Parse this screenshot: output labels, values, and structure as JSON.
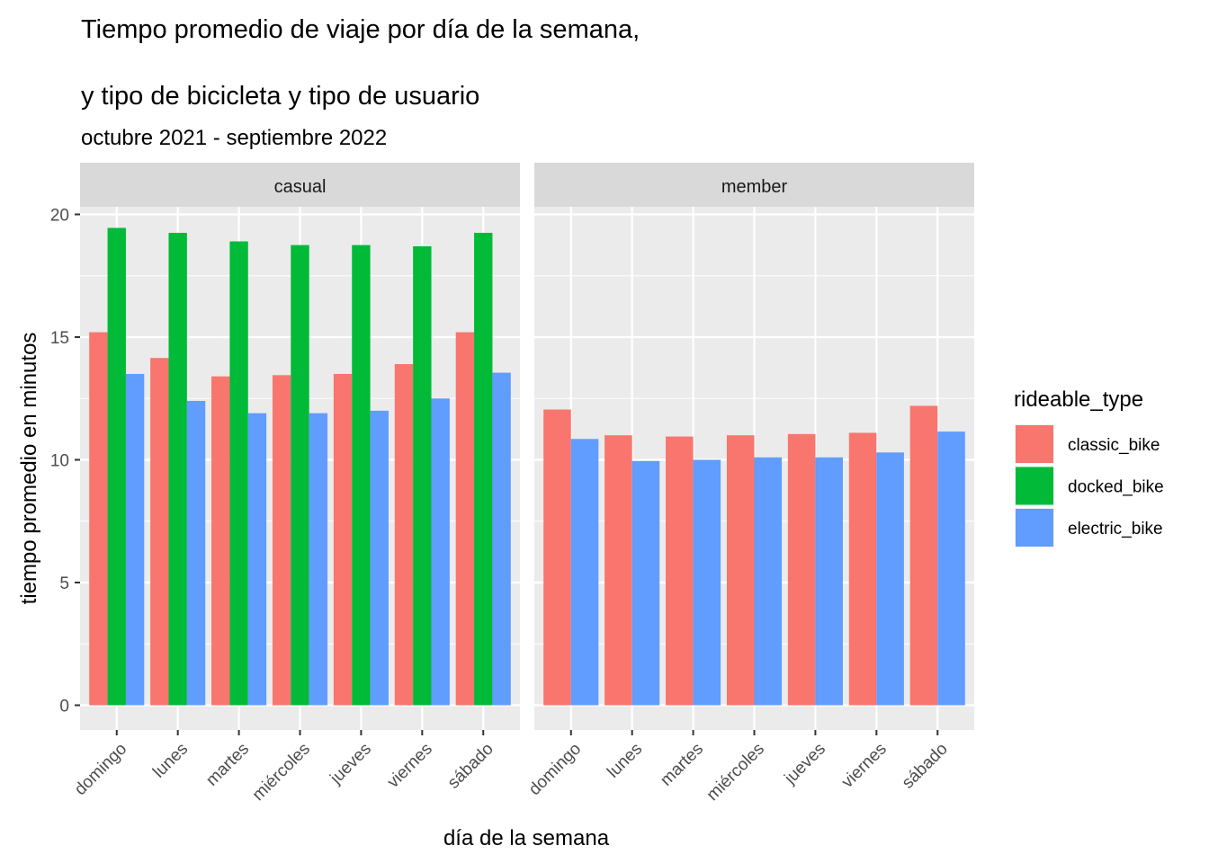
{
  "chart_data": {
    "type": "bar",
    "title_line1": "Tiempo promedio de viaje por día de la semana,",
    "title_line2": "y tipo de bicicleta y tipo de usuario",
    "subtitle": "octubre 2021 - septiembre 2022",
    "xlabel": "día de la semana",
    "ylabel": "tiempo promedio en minutos",
    "ylim": [
      0,
      20
    ],
    "yticks": [
      "0",
      "5",
      "10",
      "15",
      "20"
    ],
    "grid": true,
    "legend_position": "right",
    "legend_title": "rideable_type",
    "categories": [
      "domingo",
      "lunes",
      "martes",
      "miércoles",
      "jueves",
      "viernes",
      "sábado"
    ],
    "series_colors": {
      "classic_bike": "#F8766D",
      "docked_bike": "#00BA38",
      "electric_bike": "#619CFF"
    },
    "legend_items": [
      "classic_bike",
      "docked_bike",
      "electric_bike"
    ],
    "facets": [
      {
        "label": "casual",
        "series": [
          {
            "name": "classic_bike",
            "values": [
              15.2,
              14.15,
              13.4,
              13.45,
              13.5,
              13.9,
              15.2
            ]
          },
          {
            "name": "docked_bike",
            "values": [
              19.45,
              19.25,
              18.9,
              18.75,
              18.75,
              18.7,
              19.25
            ]
          },
          {
            "name": "electric_bike",
            "values": [
              13.5,
              12.4,
              11.9,
              11.9,
              12.0,
              12.5,
              13.55
            ]
          }
        ]
      },
      {
        "label": "member",
        "series": [
          {
            "name": "classic_bike",
            "values": [
              12.05,
              11.0,
              10.95,
              11.0,
              11.05,
              11.1,
              12.2
            ]
          },
          {
            "name": "electric_bike",
            "values": [
              10.85,
              9.95,
              10.0,
              10.1,
              10.1,
              10.3,
              11.15
            ]
          }
        ]
      }
    ]
  }
}
